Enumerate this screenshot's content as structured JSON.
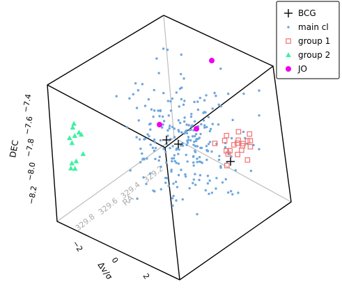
{
  "chart_data": {
    "type": "scatter",
    "projection": "3d",
    "axes": {
      "dec": {
        "label": "DEC",
        "ticks": [
          "−7.4",
          "−7.6",
          "−7.8",
          "−8.0",
          "−8.2"
        ]
      },
      "ra": {
        "label": "RA",
        "ticks": [
          "329.8",
          "329.6",
          "329.4",
          "329.2"
        ]
      },
      "v": {
        "label": "Δv/σ",
        "ticks": [
          "−2",
          "0",
          "2"
        ]
      }
    },
    "legend": {
      "placement": "top-right",
      "entries": [
        {
          "key": "bcg",
          "label": "BCG",
          "marker": "plus",
          "color": "#000000"
        },
        {
          "key": "main",
          "label": "main cl",
          "marker": "dot",
          "color": "#6fa6dd"
        },
        {
          "key": "group1",
          "label": "group 1",
          "marker": "square",
          "color": "#f07070"
        },
        {
          "key": "group2",
          "label": "group 2",
          "marker": "triangle",
          "color": "#40f0a0"
        },
        {
          "key": "jo",
          "label": "JO",
          "marker": "circle",
          "color": "#ee00ee"
        }
      ]
    },
    "series": [
      {
        "key": "bcg",
        "count": 3
      },
      {
        "key": "main",
        "count": 260
      },
      {
        "key": "group1",
        "count": 20
      },
      {
        "key": "group2",
        "count": 12
      },
      {
        "key": "jo",
        "count": 3
      }
    ]
  }
}
